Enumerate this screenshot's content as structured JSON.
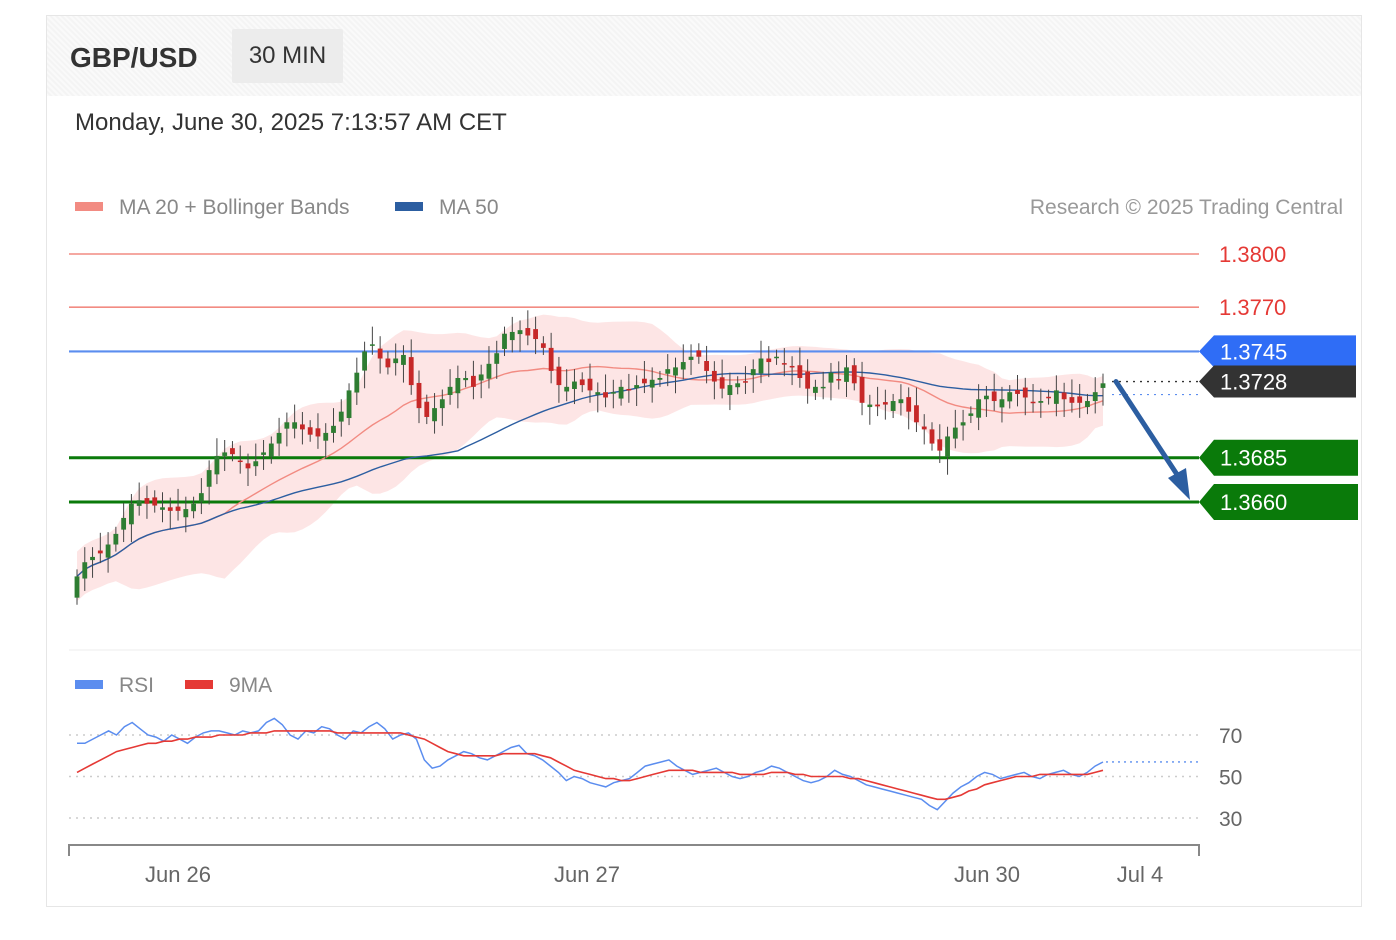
{
  "header": {
    "symbol": "GBP/USD",
    "timeframe": "30 MIN",
    "datetime": "Monday, June 30, 2025 7:13:57 AM CET"
  },
  "legend": {
    "ma20_label": "MA 20 + Bollinger Bands",
    "ma50_label": "MA 50",
    "rsi_label": "RSI",
    "rsi_ma_label": "9MA",
    "credit": "Research © 2025 Trading Central"
  },
  "colors": {
    "ma20": "#f28b82",
    "ma50": "#2c5ea1",
    "band_fill": "#fde0e0",
    "resistance": "#f28b82",
    "pivot": "#5b8def",
    "support": "#0a7a0a",
    "bull_candle": "#2e7d32",
    "bear_candle": "#c62828",
    "rsi": "#5b8def",
    "rsi_ma": "#e53935",
    "arrow": "#2c5ea1"
  },
  "chart_data": [
    {
      "type": "candlestick",
      "title": "GBP/USD",
      "timeframe": "30 MIN",
      "x_ticks": [
        "Jun 26",
        "Jun 27",
        "Jun 30",
        "Jul 4"
      ],
      "y_range": [
        1.3555,
        1.381
      ],
      "levels": [
        {
          "label": "1.3800",
          "value": 1.38,
          "kind": "resistance"
        },
        {
          "label": "1.3770",
          "value": 1.377,
          "kind": "resistance"
        },
        {
          "label": "1.3745",
          "value": 1.3745,
          "kind": "pivot"
        },
        {
          "label": "1.3728",
          "value": 1.3728,
          "kind": "last_price"
        },
        {
          "label": "1.3685",
          "value": 1.3685,
          "kind": "support"
        },
        {
          "label": "1.3660",
          "value": 1.366,
          "kind": "support"
        }
      ],
      "forecast_arrow": {
        "from": 1.3728,
        "to": 1.366,
        "direction": "down"
      },
      "close": [
        1.3618,
        1.3626,
        1.3629,
        1.3631,
        1.3636,
        1.3642,
        1.3651,
        1.3659,
        1.3661,
        1.3659,
        1.3658,
        1.3657,
        1.3655,
        1.3655,
        1.3656,
        1.3659,
        1.3665,
        1.3678,
        1.3686,
        1.3688,
        1.3687,
        1.3683,
        1.3679,
        1.3683,
        1.3688,
        1.3693,
        1.3699,
        1.3705,
        1.3705,
        1.3701,
        1.3698,
        1.3697,
        1.3699,
        1.3703,
        1.3711,
        1.3723,
        1.3733,
        1.3745,
        1.3749,
        1.3741,
        1.3736,
        1.3741,
        1.3743,
        1.3726,
        1.3713,
        1.3708,
        1.3713,
        1.3718,
        1.3725,
        1.373,
        1.373,
        1.3725,
        1.3732,
        1.3738,
        1.3744,
        1.3755,
        1.3756,
        1.3757,
        1.3754,
        1.3752,
        1.3747,
        1.3734,
        1.3726,
        1.3725,
        1.3728,
        1.3726,
        1.3723,
        1.3722,
        1.3719,
        1.3722,
        1.3725,
        1.3723,
        1.3726,
        1.3727,
        1.3729,
        1.373,
        1.3735,
        1.3736,
        1.3739,
        1.3742,
        1.3742,
        1.3734,
        1.3728,
        1.3724,
        1.3726,
        1.3727,
        1.3728,
        1.3735,
        1.3741,
        1.3739,
        1.3742,
        1.3738,
        1.3736,
        1.373,
        1.3724,
        1.3725,
        1.3725,
        1.3733,
        1.3729,
        1.3736,
        1.3727,
        1.3716,
        1.3715,
        1.3714,
        1.3715,
        1.3717,
        1.3718,
        1.3711,
        1.3705,
        1.3701,
        1.3693,
        1.3689,
        1.3697,
        1.3702,
        1.3705,
        1.371,
        1.3718,
        1.372,
        1.3717,
        1.3718,
        1.3722,
        1.3721,
        1.3719,
        1.3716,
        1.3717,
        1.3719,
        1.3723,
        1.3718,
        1.3716,
        1.3716,
        1.3717,
        1.3722,
        1.3727
      ],
      "note": "close series estimated from the rendered price path; OHLC per bar approximated"
    },
    {
      "type": "line",
      "title": "RSI",
      "y_ticks": [
        30,
        50,
        70
      ],
      "series": [
        {
          "name": "RSI",
          "values": [
            66,
            66,
            68,
            70,
            72,
            70,
            74,
            76,
            73,
            70,
            69,
            67,
            70,
            68,
            66,
            69,
            71,
            72,
            72,
            71,
            70,
            72,
            71,
            72,
            76,
            78,
            75,
            70,
            68,
            72,
            71,
            74,
            73,
            70,
            68,
            72,
            71,
            74,
            76,
            73,
            68,
            70,
            71,
            68,
            58,
            54,
            55,
            58,
            60,
            62,
            61,
            59,
            58,
            60,
            62,
            64,
            65,
            61,
            60,
            58,
            55,
            52,
            48,
            50,
            49,
            47,
            46,
            45,
            47,
            48,
            49,
            52,
            55,
            56,
            57,
            58,
            55,
            53,
            51,
            52,
            53,
            54,
            52,
            50,
            49,
            50,
            52,
            53,
            55,
            54,
            52,
            50,
            48,
            47,
            48,
            50,
            53,
            51,
            50,
            48,
            46,
            45,
            44,
            43,
            42,
            41,
            40,
            39,
            36,
            34,
            38,
            42,
            45,
            47,
            50,
            52,
            51,
            49,
            50,
            51,
            52,
            50,
            49,
            51,
            52,
            53,
            51,
            50,
            52,
            55,
            57
          ]
        },
        {
          "name": "9MA",
          "values": [
            52,
            54,
            56,
            58,
            60,
            62,
            63,
            64,
            65,
            66,
            66,
            67,
            67,
            68,
            68,
            69,
            69,
            69,
            70,
            70,
            70,
            70,
            71,
            71,
            71,
            72,
            72,
            72,
            72,
            72,
            72,
            72,
            72,
            71,
            71,
            71,
            71,
            71,
            71,
            71,
            71,
            71,
            70,
            69,
            68,
            66,
            64,
            62,
            61,
            60,
            60,
            60,
            60,
            60,
            61,
            61,
            61,
            61,
            61,
            60,
            59,
            57,
            55,
            53,
            52,
            51,
            50,
            49,
            49,
            48,
            48,
            49,
            50,
            51,
            52,
            53,
            53,
            53,
            53,
            52,
            52,
            52,
            52,
            52,
            51,
            51,
            51,
            51,
            52,
            52,
            52,
            51,
            51,
            50,
            50,
            50,
            50,
            50,
            49,
            49,
            48,
            47,
            46,
            45,
            44,
            43,
            42,
            41,
            40,
            39,
            39,
            40,
            41,
            43,
            44,
            46,
            47,
            48,
            49,
            50,
            50,
            50,
            51,
            51,
            51,
            51,
            51,
            51,
            51,
            52,
            53
          ]
        }
      ],
      "ylim": [
        20,
        90
      ]
    }
  ]
}
